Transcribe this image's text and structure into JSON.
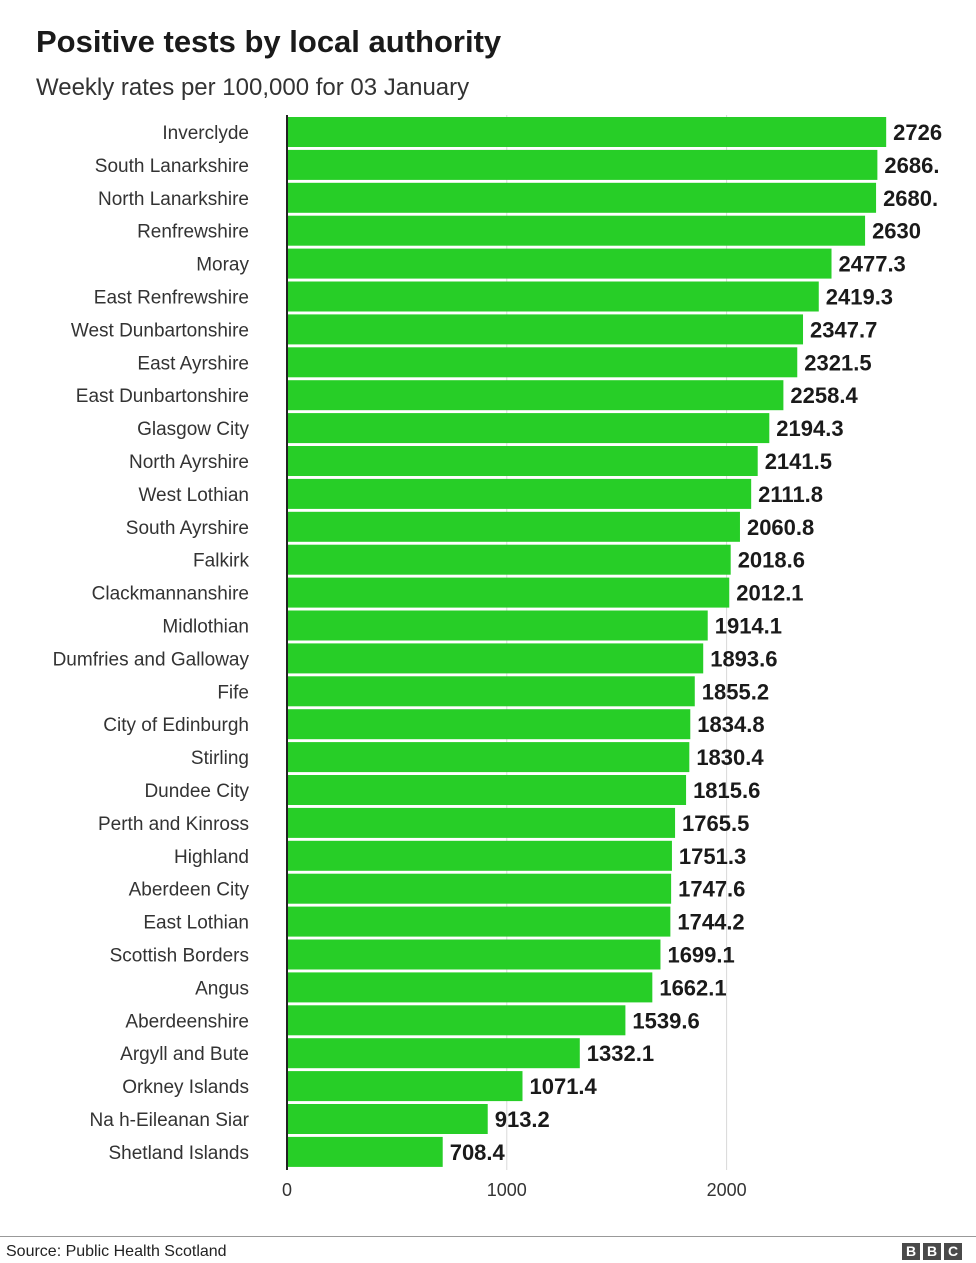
{
  "header": {
    "title": "Positive tests by local authority",
    "subtitle": "Weekly rates per 100,000 for 03 January"
  },
  "footer": {
    "source": "Source: Public Health Scotland",
    "logo_letters": [
      "B",
      "B",
      "C"
    ]
  },
  "colors": {
    "bar": "#27ce27",
    "gridline": "#d8d8d8",
    "axis": "#222222"
  },
  "chart_data": {
    "type": "bar",
    "orientation": "horizontal",
    "title": "Positive tests by local authority",
    "subtitle": "Weekly rates per 100,000 for 03 January",
    "xlabel": "",
    "ylabel": "",
    "xlim": [
      0,
      2700
    ],
    "xticks": [
      0,
      1000,
      2000
    ],
    "grid": true,
    "categories": [
      "Inverclyde",
      "South Lanarkshire",
      "North Lanarkshire",
      "Renfrewshire",
      "Moray",
      "East Renfrewshire",
      "West Dunbartonshire",
      "East Ayrshire",
      "East Dunbartonshire",
      "Glasgow City",
      "North Ayrshire",
      "West Lothian",
      "South Ayrshire",
      "Falkirk",
      "Clackmannanshire",
      "Midlothian",
      "Dumfries and Galloway",
      "Fife",
      "City of Edinburgh",
      "Stirling",
      "Dundee City",
      "Perth and Kinross",
      "Highland",
      "Aberdeen City",
      "East Lothian",
      "Scottish Borders",
      "Angus",
      "Aberdeenshire",
      "Argyll and Bute",
      "Orkney Islands",
      "Na h-Eileanan Siar",
      "Shetland Islands"
    ],
    "values": [
      2726,
      2686,
      2680,
      2630,
      2477.3,
      2419.3,
      2347.7,
      2321.5,
      2258.4,
      2194.3,
      2141.5,
      2111.8,
      2060.8,
      2018.6,
      2012.1,
      1914.1,
      1893.6,
      1855.2,
      1834.8,
      1830.4,
      1815.6,
      1765.5,
      1751.3,
      1747.6,
      1744.2,
      1699.1,
      1662.1,
      1539.6,
      1332.1,
      1071.4,
      913.2,
      708.4
    ],
    "value_labels": [
      "2726",
      "2686.",
      "2680.",
      "2630",
      "2477.3",
      "2419.3",
      "2347.7",
      "2321.5",
      "2258.4",
      "2194.3",
      "2141.5",
      "2111.8",
      "2060.8",
      "2018.6",
      "2012.1",
      "1914.1",
      "1893.6",
      "1855.2",
      "1834.8",
      "1830.4",
      "1815.6",
      "1765.5",
      "1751.3",
      "1747.6",
      "1744.2",
      "1699.1",
      "1662.1",
      "1539.6",
      "1332.1",
      "1071.4",
      "913.2",
      "708.4"
    ]
  }
}
